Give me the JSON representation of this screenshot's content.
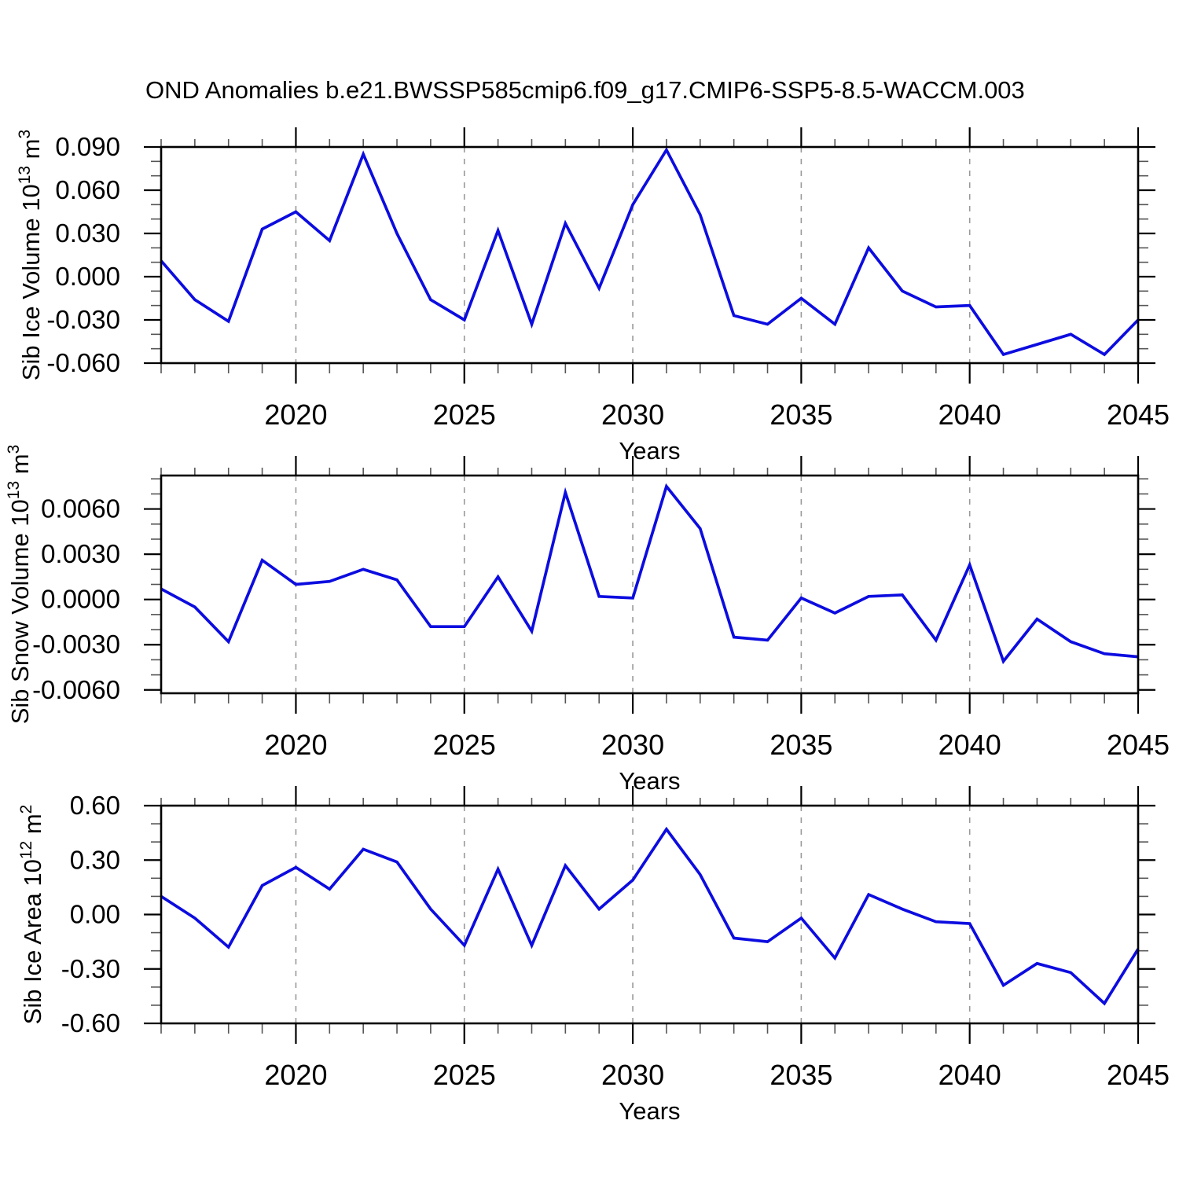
{
  "title": "OND Anomalies b.e21.BWSSP585cmip6.f09_g17.CMIP6-SSP5-8.5-WACCM.003",
  "line_color": "#0c0ce0",
  "grid_color": "#999999",
  "axis_color": "#000000",
  "minor_tick_color": "#555555",
  "chart_data": [
    {
      "type": "line",
      "name": "sib-ice-volume",
      "ylabel_parts": [
        [
          "Sib Ice Volume 10",
          0
        ],
        [
          "13",
          1
        ],
        [
          " m",
          0
        ],
        [
          "3",
          1
        ]
      ],
      "xlabel": "Years",
      "x": [
        2016,
        2017,
        2018,
        2019,
        2020,
        2021,
        2022,
        2023,
        2024,
        2025,
        2026,
        2027,
        2028,
        2029,
        2030,
        2031,
        2032,
        2033,
        2034,
        2035,
        2036,
        2037,
        2038,
        2039,
        2040,
        2041,
        2042,
        2043,
        2044,
        2045
      ],
      "values": [
        0.011,
        -0.016,
        -0.031,
        0.033,
        0.045,
        0.025,
        0.085,
        0.03,
        -0.016,
        -0.03,
        0.032,
        -0.033,
        0.037,
        -0.008,
        0.05,
        0.088,
        0.043,
        -0.027,
        -0.033,
        -0.015,
        -0.033,
        0.02,
        -0.01,
        -0.021,
        -0.02,
        -0.054,
        -0.047,
        -0.04,
        -0.054,
        -0.03
      ],
      "xlim": [
        2016,
        2045
      ],
      "ylim": [
        -0.06,
        0.09
      ],
      "ytick_values": [
        0.09,
        0.06,
        0.03,
        0.0,
        -0.03,
        -0.06
      ],
      "ytick_labels": [
        "0.090",
        "0.060",
        "0.030",
        "0.000",
        "-0.030",
        "-0.060"
      ],
      "yminor_step": 0.01,
      "xtick_values": [
        2020,
        2025,
        2030,
        2035,
        2040,
        2045
      ],
      "xtick_labels": [
        "2020",
        "2025",
        "2030",
        "2035",
        "2040",
        "2045"
      ],
      "xminor_step": 1,
      "grid_x": [
        2020,
        2025,
        2030,
        2035,
        2040
      ]
    },
    {
      "type": "line",
      "name": "sib-snow-volume",
      "ylabel_parts": [
        [
          "Sib Snow Volume 10",
          0
        ],
        [
          "13",
          1
        ],
        [
          " m",
          0
        ],
        [
          "3",
          1
        ]
      ],
      "xlabel": "Years",
      "x": [
        2016,
        2017,
        2018,
        2019,
        2020,
        2021,
        2022,
        2023,
        2024,
        2025,
        2026,
        2027,
        2028,
        2029,
        2030,
        2031,
        2032,
        2033,
        2034,
        2035,
        2036,
        2037,
        2038,
        2039,
        2040,
        2041,
        2042,
        2043,
        2044,
        2045
      ],
      "values": [
        0.0007,
        -0.0005,
        -0.0028,
        0.0026,
        0.001,
        0.0012,
        0.002,
        0.0013,
        -0.0018,
        -0.0018,
        0.0015,
        -0.0021,
        0.0071,
        0.0002,
        0.0001,
        0.0075,
        0.0047,
        -0.0025,
        -0.0027,
        0.0001,
        -0.0009,
        0.0002,
        0.0003,
        -0.0027,
        0.0023,
        -0.0041,
        -0.0013,
        -0.0028,
        -0.0036,
        -0.0038
      ],
      "xlim": [
        2016,
        2045
      ],
      "ylim": [
        -0.00622,
        0.00822
      ],
      "ytick_values": [
        0.006,
        0.003,
        0.0,
        -0.003,
        -0.006
      ],
      "ytick_labels": [
        "0.0060",
        "0.0030",
        "0.0000",
        "-0.0030",
        "-0.0060"
      ],
      "yminor_step": 0.001,
      "xtick_values": [
        2020,
        2025,
        2030,
        2035,
        2040,
        2045
      ],
      "xtick_labels": [
        "2020",
        "2025",
        "2030",
        "2035",
        "2040",
        "2045"
      ],
      "xminor_step": 1,
      "grid_x": [
        2020,
        2025,
        2030,
        2035,
        2040
      ]
    },
    {
      "type": "line",
      "name": "sib-ice-area",
      "ylabel_parts": [
        [
          "Sib Ice Area 10",
          0
        ],
        [
          "12",
          1
        ],
        [
          " m",
          0
        ],
        [
          "2",
          1
        ]
      ],
      "xlabel": "Years",
      "x": [
        2016,
        2017,
        2018,
        2019,
        2020,
        2021,
        2022,
        2023,
        2024,
        2025,
        2026,
        2027,
        2028,
        2029,
        2030,
        2031,
        2032,
        2033,
        2034,
        2035,
        2036,
        2037,
        2038,
        2039,
        2040,
        2041,
        2042,
        2043,
        2044,
        2045
      ],
      "values": [
        0.1,
        -0.02,
        -0.18,
        0.16,
        0.26,
        0.14,
        0.36,
        0.29,
        0.03,
        -0.17,
        0.25,
        -0.17,
        0.27,
        0.03,
        0.19,
        0.47,
        0.22,
        -0.13,
        -0.15,
        -0.02,
        -0.24,
        0.11,
        0.03,
        -0.04,
        -0.05,
        -0.39,
        -0.27,
        -0.32,
        -0.49,
        -0.19
      ],
      "xlim": [
        2016,
        2045
      ],
      "ylim": [
        -0.6,
        0.6
      ],
      "ytick_values": [
        0.6,
        0.3,
        0.0,
        -0.3,
        -0.6
      ],
      "ytick_labels": [
        "0.60",
        "0.30",
        "0.00",
        "-0.30",
        "-0.60"
      ],
      "yminor_step": 0.1,
      "xtick_values": [
        2020,
        2025,
        2030,
        2035,
        2040,
        2045
      ],
      "xtick_labels": [
        "2020",
        "2025",
        "2030",
        "2035",
        "2040",
        "2045"
      ],
      "xminor_step": 1,
      "grid_x": [
        2020,
        2025,
        2030,
        2035,
        2040
      ]
    }
  ]
}
